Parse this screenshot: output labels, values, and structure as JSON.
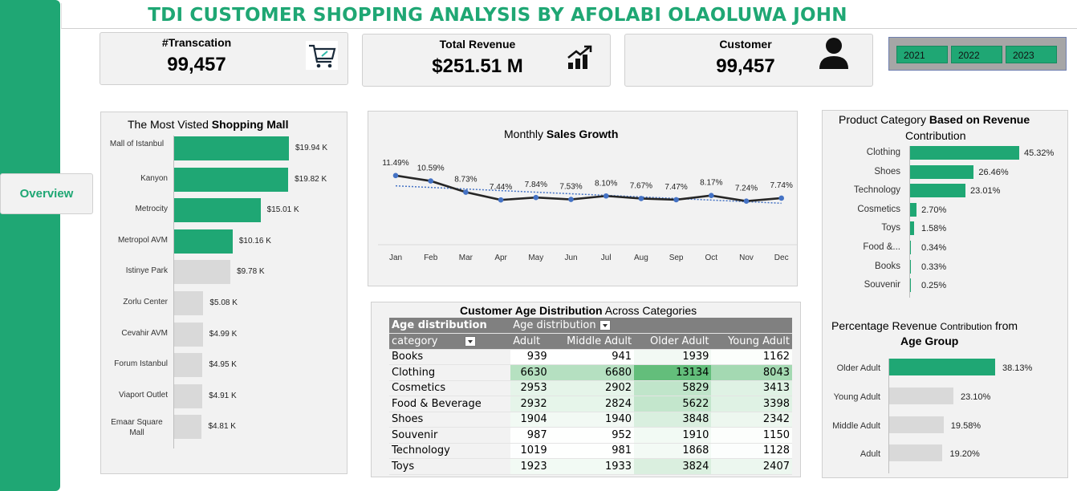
{
  "title": "TDI CUSTOMER SHOPPING ANALYSIS BY AFOLABI OLAOLUWA JOHN",
  "nav": {
    "overview": "Overview"
  },
  "kpis": {
    "transactions": {
      "label": "#Transcation",
      "value": "99,457",
      "icon": "shopping-cart-icon"
    },
    "revenue": {
      "label": "Total Revenue",
      "value": "$251.51 M",
      "icon": "growth-chart-icon"
    },
    "customer": {
      "label": "Customer",
      "value": "99,457",
      "icon": "person-icon"
    }
  },
  "years": [
    "2021",
    "2022",
    "2023"
  ],
  "colors": {
    "accent": "#1fa774",
    "bar_gray": "#d9d9d9",
    "line": "#262626",
    "marker": "#4472c4"
  },
  "malls_chart": {
    "title_plain": "The Most Visted ",
    "title_bold": "Shopping Mall",
    "chart_data": {
      "type": "bar",
      "orientation": "horizontal",
      "categories": [
        "Mall of Istanbul",
        "Kanyon",
        "Metrocity",
        "Metropol AVM",
        "Istinye Park",
        "Zorlu Center",
        "Cevahir AVM",
        "Forum Istanbul",
        "Viaport Outlet",
        "Emaar Square Mall"
      ],
      "values": [
        19.94,
        19.82,
        15.01,
        10.16,
        9.78,
        5.08,
        4.99,
        4.95,
        4.91,
        4.81
      ],
      "labels": [
        "$19.94 K",
        "$19.82 K",
        "$15.01 K",
        "$10.16 K",
        "$9.78 K",
        "$5.08 K",
        "$4.99 K",
        "$4.95 K",
        "$4.91 K",
        "$4.81 K"
      ],
      "highlighted": [
        true,
        true,
        true,
        true,
        false,
        false,
        false,
        false,
        false,
        false
      ]
    }
  },
  "sales_chart": {
    "title_plain": "Monthly ",
    "title_bold": "Sales Growth",
    "chart_data": {
      "type": "line",
      "categories": [
        "Jan",
        "Feb",
        "Mar",
        "Apr",
        "May",
        "Jun",
        "Jul",
        "Aug",
        "Sep",
        "Oct",
        "Nov",
        "Dec"
      ],
      "values": [
        11.49,
        10.59,
        8.73,
        7.44,
        7.84,
        7.53,
        8.1,
        7.67,
        7.47,
        8.17,
        7.24,
        7.74
      ],
      "labels": [
        "11.49%",
        "10.59%",
        "8.73%",
        "7.44%",
        "7.84%",
        "7.53%",
        "8.10%",
        "7.67%",
        "7.47%",
        "8.17%",
        "7.24%",
        "7.74%"
      ],
      "trendline": "linear, dotted",
      "ylim": [
        0,
        13
      ]
    }
  },
  "age_table": {
    "title_bold": "Customer Age Distribution",
    "title_plain": " Across Categories",
    "corner_header": "Age distribution",
    "col_group_header": "Age distribution",
    "row_header": "category",
    "columns": [
      "Adult",
      "Middle Adult",
      "Older Adult",
      "Young Adult"
    ],
    "rows": [
      {
        "category": "Books",
        "values": [
          "939",
          "941",
          "1939",
          "1162"
        ]
      },
      {
        "category": "Clothing",
        "values": [
          "6630",
          "6680",
          "13134",
          "8043"
        ]
      },
      {
        "category": "Cosmetics",
        "values": [
          "2953",
          "2902",
          "5829",
          "3413"
        ]
      },
      {
        "category": "Food & Beverage",
        "values": [
          "2932",
          "2824",
          "5622",
          "3398"
        ]
      },
      {
        "category": "Shoes",
        "values": [
          "1904",
          "1940",
          "3848",
          "2342"
        ]
      },
      {
        "category": "Souvenir",
        "values": [
          "987",
          "952",
          "1910",
          "1150"
        ]
      },
      {
        "category": "Technology",
        "values": [
          "1019",
          "981",
          "1868",
          "1128"
        ]
      },
      {
        "category": "Toys",
        "values": [
          "1923",
          "1933",
          "3824",
          "2407"
        ]
      }
    ]
  },
  "category_chart": {
    "title_plain": "Product Category ",
    "title_bold": "Based on Revenue",
    "title_line2": "Contribution",
    "chart_data": {
      "type": "bar",
      "orientation": "horizontal",
      "categories": [
        "Clothing",
        "Shoes",
        "Technology",
        "Cosmetics",
        "Toys",
        "Food &...",
        "Books",
        "Souvenir"
      ],
      "values": [
        45.32,
        26.46,
        23.01,
        2.7,
        1.58,
        0.34,
        0.33,
        0.25
      ],
      "labels": [
        "45.32%",
        "26.46%",
        "23.01%",
        "2.70%",
        "1.58%",
        "0.34%",
        "0.33%",
        "0.25%"
      ]
    }
  },
  "agegroup_chart": {
    "title_line1": "Percentage Revenue ",
    "title_small": "Contribution",
    "title_line1_end": "  from",
    "title_bold": "Age Group",
    "chart_data": {
      "type": "bar",
      "orientation": "horizontal",
      "categories": [
        "Older Adult",
        "Young Adult",
        "Middle Adult",
        "Adult"
      ],
      "values": [
        38.13,
        23.1,
        19.58,
        19.2
      ],
      "labels": [
        "38.13%",
        "23.10%",
        "19.58%",
        "19.20%"
      ],
      "highlighted": [
        true,
        false,
        false,
        false
      ]
    }
  }
}
